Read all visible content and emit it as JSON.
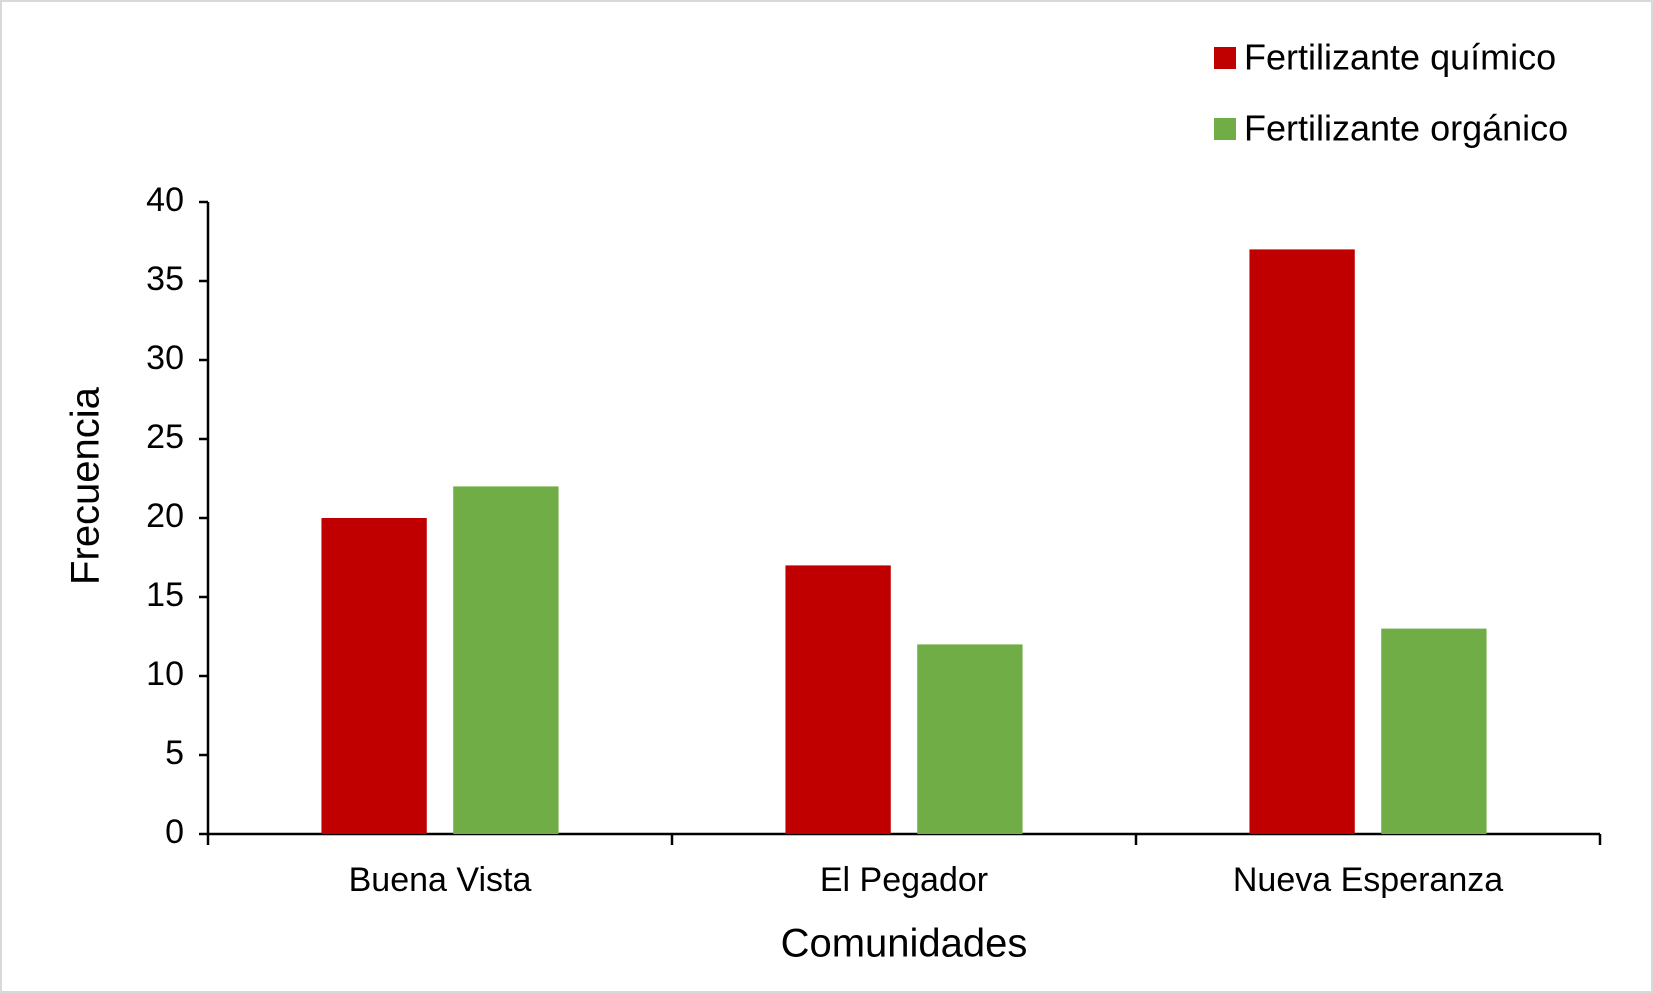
{
  "chart_data": {
    "type": "bar",
    "x_label": "Comunidades",
    "y_label": "Frecuencia",
    "categories": [
      "Buena Vista",
      "El Pegador",
      "Nueva Esperanza"
    ],
    "series": [
      {
        "name": "Fertilizante químico",
        "color": "#c00000",
        "values": [
          20,
          17,
          37
        ]
      },
      {
        "name": "Fertilizante orgánico",
        "color": "#70ad47",
        "values": [
          22,
          12,
          13
        ]
      }
    ],
    "ylim": [
      0,
      40
    ],
    "yticks": [
      0,
      5,
      10,
      15,
      20,
      25,
      30,
      35,
      40
    ],
    "grid": false,
    "legend": "top-right"
  }
}
